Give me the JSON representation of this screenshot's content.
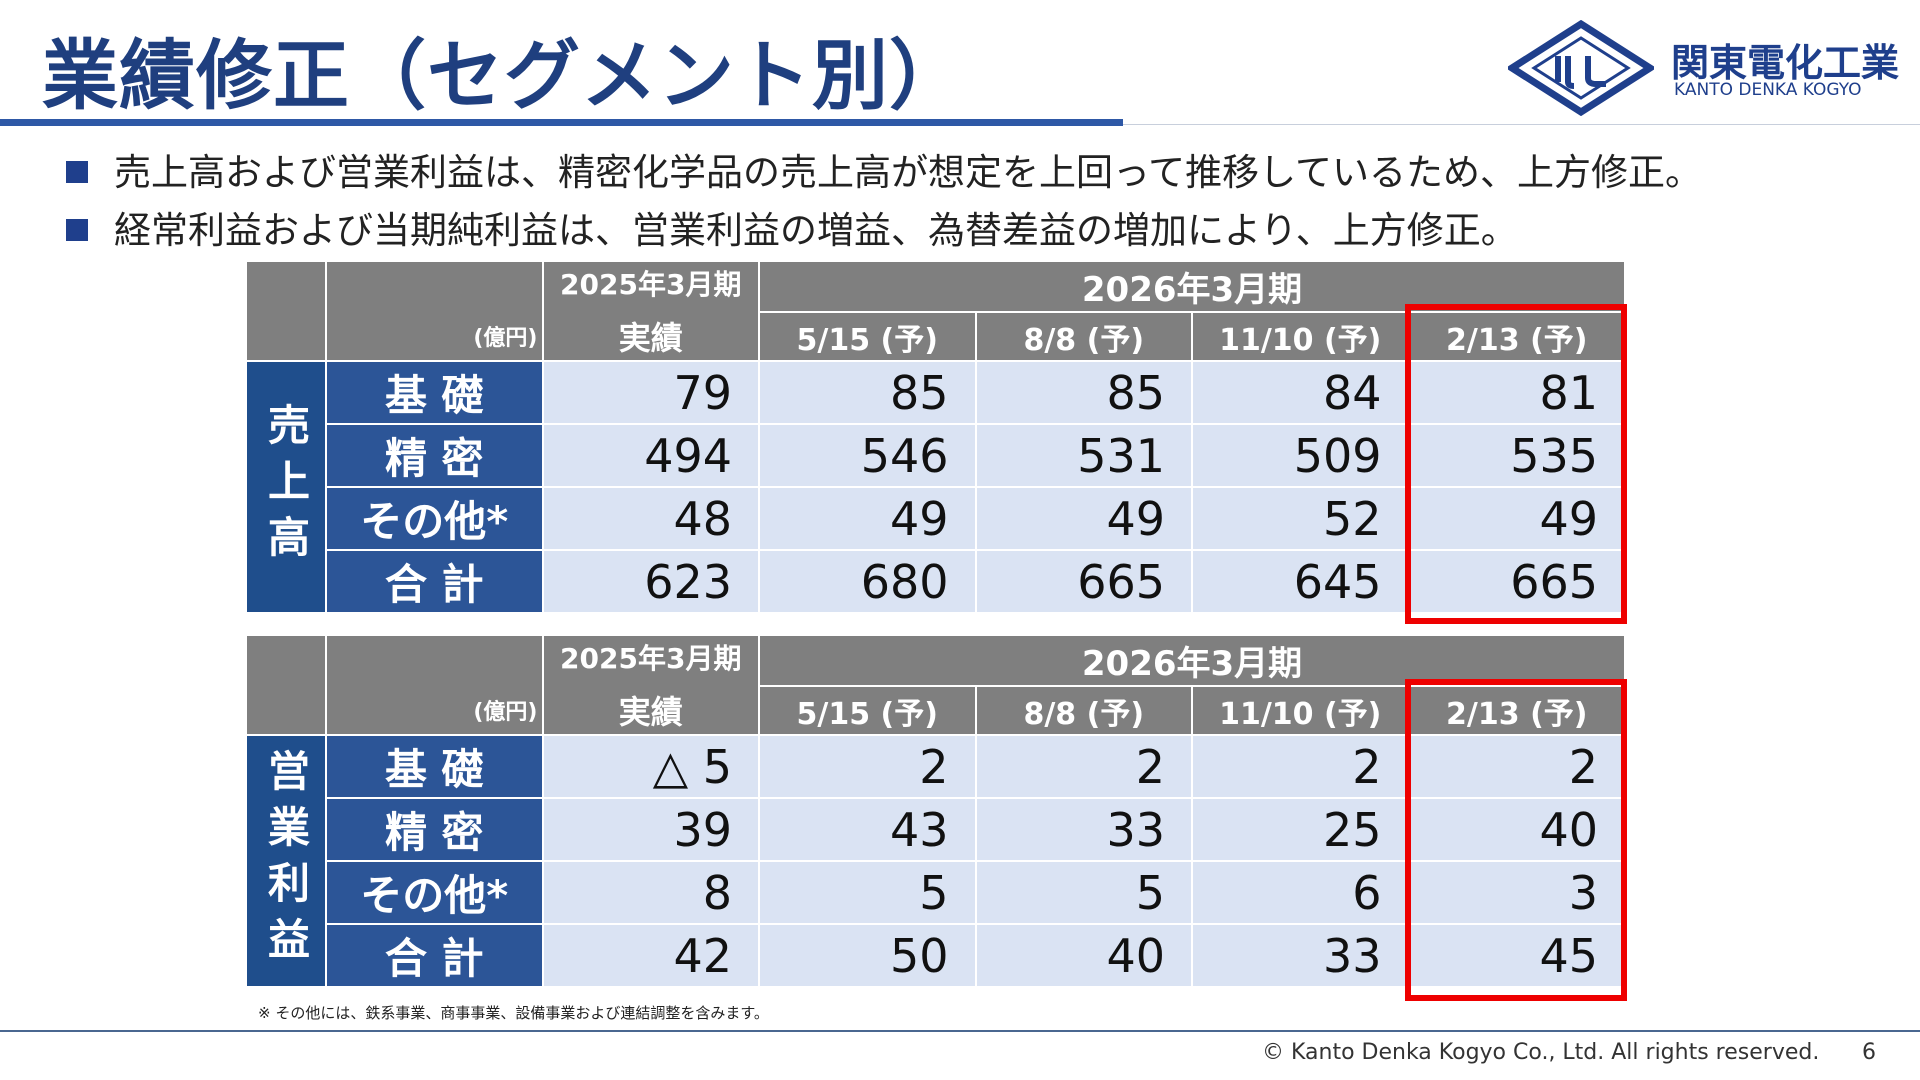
{
  "header": {
    "title": "業績修正（セグメント別）"
  },
  "logo": {
    "name": "関東電化工業",
    "sub": "KANTO DENKA KOGYO"
  },
  "bullets": [
    "売上高および営業利益は、精密化学品の売上高が想定を上回って推移しているため、上方修正。",
    "経常利益および当期純利益は、営業利益の増益、為替差益の増加により、上方修正。"
  ],
  "tables": [
    {
      "side_label": "売上高",
      "unit": "(億円)",
      "actual_period": "2025年3月期",
      "actual_label": "実績",
      "forecast_period": "2026年3月期",
      "forecast_dates": [
        "5/15 (予)",
        "8/8 (予)",
        "11/10 (予)",
        "2/13 (予)"
      ],
      "rows": [
        {
          "label": "基 礎",
          "values": [
            79,
            85,
            85,
            84,
            81
          ]
        },
        {
          "label": "精 密",
          "values": [
            494,
            546,
            531,
            509,
            535
          ]
        },
        {
          "label": "その他*",
          "values": [
            48,
            49,
            49,
            52,
            49
          ]
        },
        {
          "label": "合 計",
          "values": [
            623,
            680,
            665,
            645,
            665
          ]
        }
      ]
    },
    {
      "side_label": "営業利益",
      "unit": "(億円)",
      "actual_period": "2025年3月期",
      "actual_label": "実績",
      "forecast_period": "2026年3月期",
      "forecast_dates": [
        "5/15 (予)",
        "8/8 (予)",
        "11/10 (予)",
        "2/13 (予)"
      ],
      "rows": [
        {
          "label": "基 礎",
          "values": [
            "△ 5",
            2,
            2,
            2,
            2
          ]
        },
        {
          "label": "精 密",
          "values": [
            39,
            43,
            33,
            25,
            40
          ]
        },
        {
          "label": "その他*",
          "values": [
            8,
            5,
            5,
            6,
            3
          ]
        },
        {
          "label": "合 計",
          "values": [
            42,
            50,
            40,
            33,
            45
          ]
        }
      ]
    }
  ],
  "footnote": "※ その他には、鉄系事業、商事事業、設備事業および連結調整を含みます。",
  "footer": {
    "copyright": "© Kanto Denka Kogyo Co., Ltd. All rights reserved.",
    "page": "6"
  }
}
